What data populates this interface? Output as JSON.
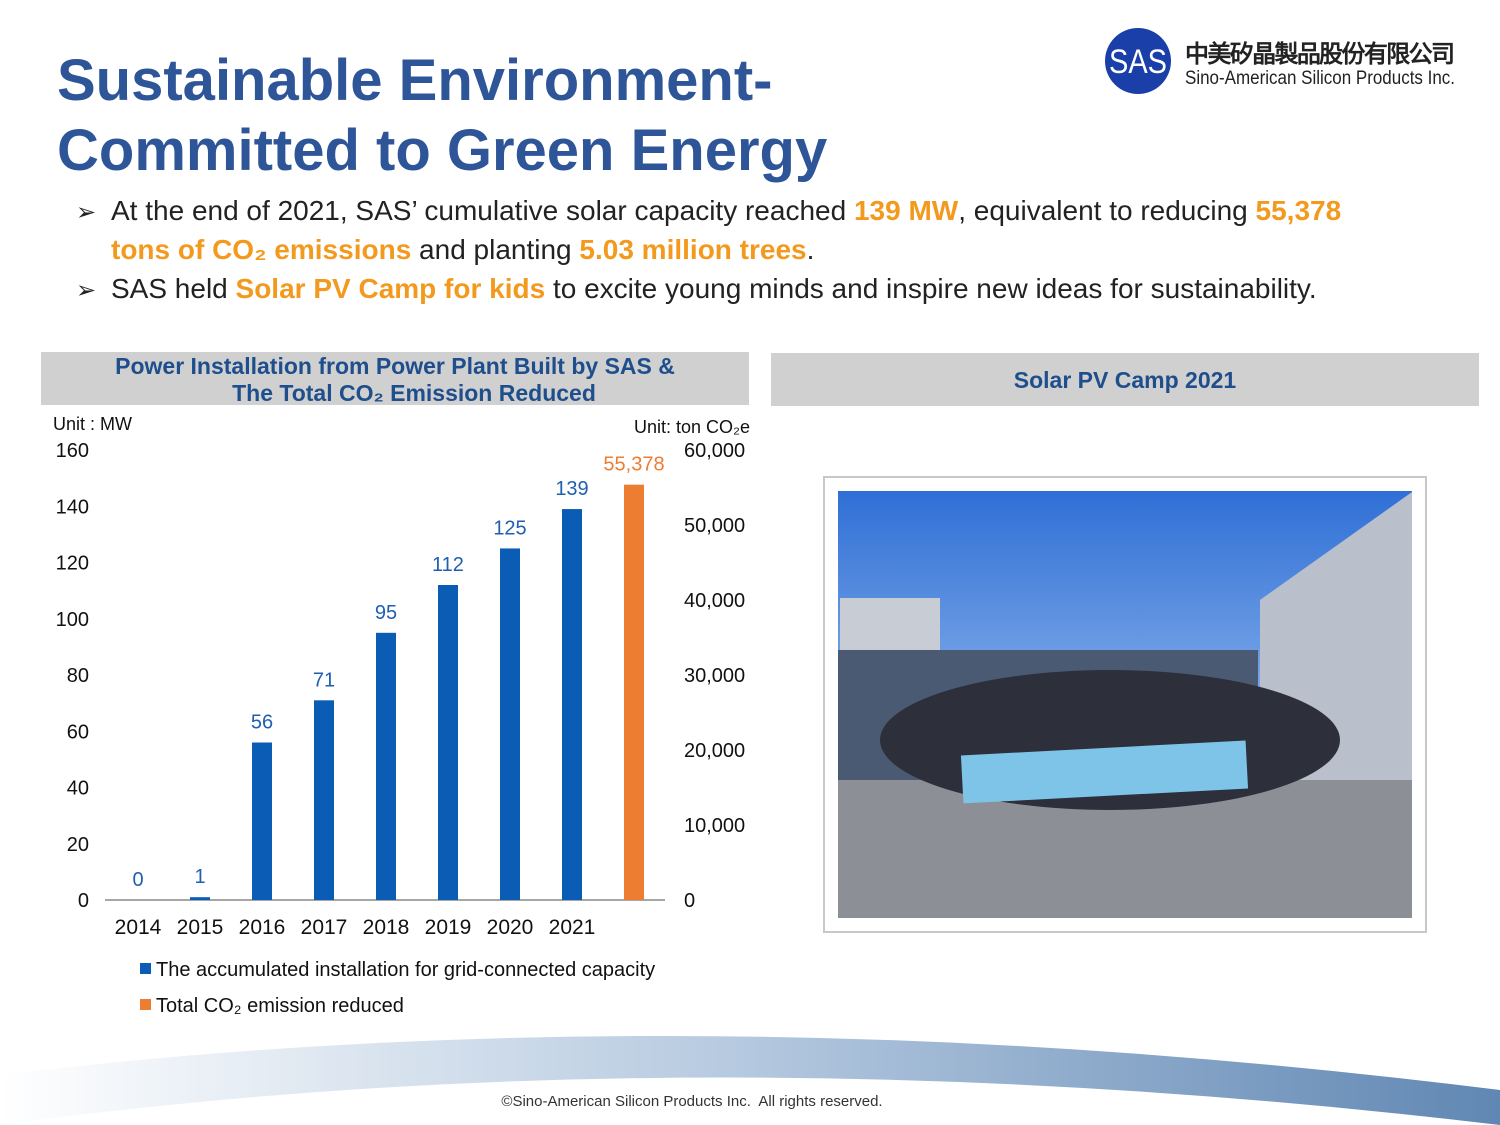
{
  "header": {
    "title_lines": [
      "Sustainable Environment-",
      "Committed to Green Energy"
    ],
    "logo": {
      "mark": "SAS",
      "name_zh": "中美矽晶製品股份有限公司",
      "name_en": "Sino-American Silicon Products Inc."
    }
  },
  "bullets": [
    {
      "lines": [
        [
          {
            "text": "At the end of 2021, SAS’ cumulative solar capacity reached ",
            "emphasis": false
          },
          {
            "text": "139 MW",
            "emphasis": true
          },
          {
            "text": ", equivalent to reducing ",
            "emphasis": false
          },
          {
            "text": "55,378",
            "emphasis": true
          }
        ],
        [
          {
            "text": "tons of CO₂ emissions",
            "emphasis": true
          },
          {
            "text": " and planting ",
            "emphasis": false
          },
          {
            "text": "5.03 million trees",
            "emphasis": true
          },
          {
            "text": ".",
            "emphasis": false
          }
        ]
      ]
    },
    {
      "lines": [
        [
          {
            "text": "SAS held ",
            "emphasis": false
          },
          {
            "text": "Solar PV Camp for kids",
            "emphasis": true
          },
          {
            "text": " to excite young minds and inspire new ideas for sustainability.",
            "emphasis": false
          }
        ]
      ]
    }
  ],
  "chart_data": {
    "type": "bar",
    "title_lines": [
      "Power Installation from Power Plant Built by SAS &",
      "The Total CO₂ Emission Reduced"
    ],
    "y_unit": "Unit : MW",
    "y2_unit": "Unit: ton CO₂e",
    "categories": [
      "2014",
      "2015",
      "2016",
      "2017",
      "2018",
      "2019",
      "2020",
      "2021",
      null
    ],
    "series": [
      {
        "name": "The accumulated installation for grid-connected capacity",
        "color": "#0b5cb5",
        "axis": "y",
        "values": [
          0,
          1,
          56,
          71,
          95,
          112,
          125,
          139,
          null
        ]
      },
      {
        "name": "Total CO₂ emission reduced",
        "color": "#ed7d31",
        "axis": "y2",
        "values": [
          null,
          null,
          null,
          null,
          null,
          null,
          null,
          null,
          55378
        ],
        "value_labels": [
          null,
          null,
          null,
          null,
          null,
          null,
          null,
          null,
          "55,378"
        ]
      }
    ],
    "ylim": [
      0,
      160
    ],
    "yticks": [
      0,
      20,
      40,
      60,
      80,
      100,
      120,
      140,
      160
    ],
    "y2lim": [
      0,
      60000
    ],
    "y2ticks": [
      0,
      {
        "value": 10000,
        "label": "10,000"
      },
      {
        "value": 20000,
        "label": "20,000"
      },
      {
        "value": 30000,
        "label": "30,000"
      },
      {
        "value": 40000,
        "label": "40,000"
      },
      {
        "value": 50000,
        "label": "50,000"
      },
      {
        "value": 60000,
        "label": "60,000"
      }
    ],
    "grid": false
  },
  "photo_panel": {
    "title": "Solar PV Camp 2021"
  },
  "footer": "©Sino-American Silicon Products Inc.  All rights reserved."
}
